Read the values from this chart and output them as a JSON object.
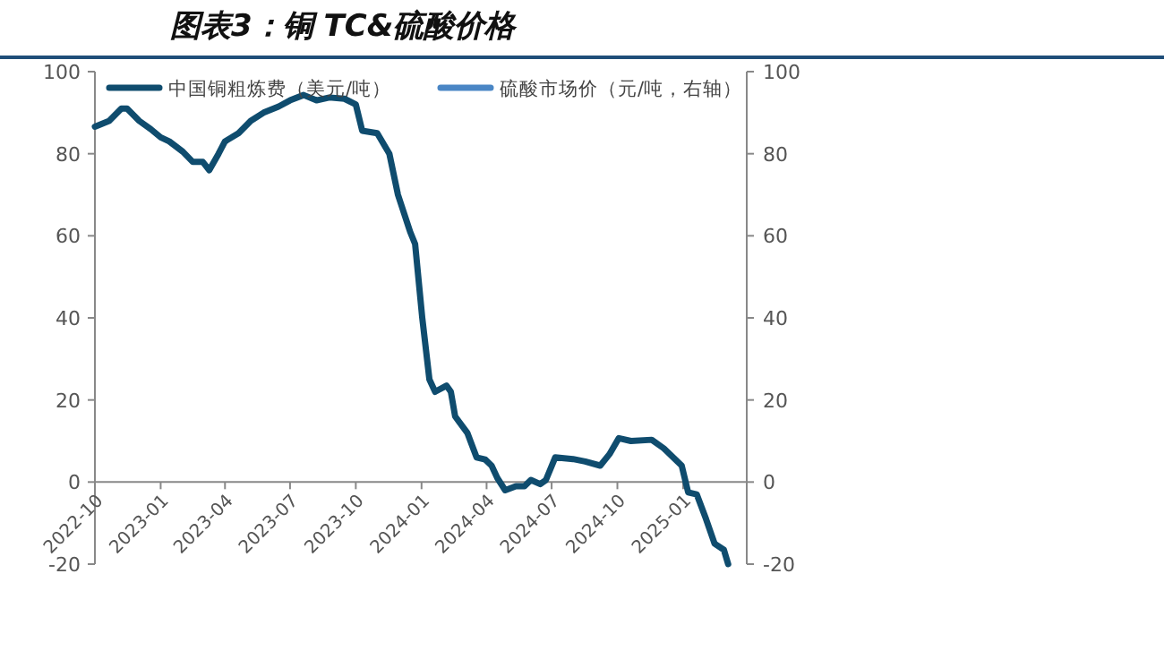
{
  "chart_data": {
    "type": "line",
    "title": "图表3：铜 TC&硫酸价格",
    "legend": "top",
    "xlim": [
      "2022-10-01",
      "2025-03-31"
    ],
    "xticks": [
      {
        "value": "2022-10-01",
        "label": "2022-10"
      },
      {
        "value": "2023-01-01",
        "label": "2023-01"
      },
      {
        "value": "2023-04-01",
        "label": "2023-04"
      },
      {
        "value": "2023-07-01",
        "label": "2023-07"
      },
      {
        "value": "2023-10-01",
        "label": "2023-10"
      },
      {
        "value": "2024-01-01",
        "label": "2024-01"
      },
      {
        "value": "2024-04-01",
        "label": "2024-04"
      },
      {
        "value": "2024-07-01",
        "label": "2024-07"
      },
      {
        "value": "2024-10-01",
        "label": "2024-10"
      },
      {
        "value": "2025-01-01",
        "label": "2025-01"
      }
    ],
    "ylim": [
      -20,
      100
    ],
    "yticks": [
      -20,
      0,
      20,
      40,
      60,
      80,
      100
    ],
    "y2lim": [
      -20,
      100
    ],
    "y2ticks": [
      -20,
      0,
      20,
      40,
      60,
      80,
      100
    ],
    "series": [
      {
        "name": "中国铜粗炼费（美元/吨）",
        "color": "#0f4c6e",
        "x": [
          "2022-10-01",
          "2022-10-21",
          "2022-11-07",
          "2022-11-15",
          "2022-12-02",
          "2022-12-18",
          "2023-01-01",
          "2023-01-13",
          "2023-02-01",
          "2023-02-15",
          "2023-03-01",
          "2023-03-10",
          "2023-03-23",
          "2023-04-01",
          "2023-04-20",
          "2023-05-07",
          "2023-05-25",
          "2023-06-15",
          "2023-07-01",
          "2023-07-20",
          "2023-08-07",
          "2023-08-25",
          "2023-09-15",
          "2023-10-01",
          "2023-10-10",
          "2023-10-31",
          "2023-11-17",
          "2023-11-29",
          "2023-12-16",
          "2023-12-23",
          "2024-01-02",
          "2024-01-12",
          "2024-01-20",
          "2024-02-05",
          "2024-02-11",
          "2024-02-17",
          "2024-03-05",
          "2024-03-18",
          "2024-03-30",
          "2024-04-08",
          "2024-04-16",
          "2024-04-27",
          "2024-05-12",
          "2024-05-24",
          "2024-06-02",
          "2024-06-15",
          "2024-06-23",
          "2024-07-06",
          "2024-07-31",
          "2024-08-17",
          "2024-09-07",
          "2024-09-20",
          "2024-10-03",
          "2024-10-20",
          "2024-11-18",
          "2024-12-05",
          "2024-12-30",
          "2025-01-08",
          "2025-01-20",
          "2025-02-02",
          "2025-02-14",
          "2025-02-27",
          "2025-03-05"
        ],
        "values": [
          86.6,
          88,
          91,
          91,
          88,
          86,
          84,
          83,
          80.5,
          78,
          78,
          76,
          80,
          83,
          85,
          88,
          90,
          91.5,
          93,
          94.3,
          93,
          93.7,
          93.4,
          92,
          85.6,
          85,
          80,
          70,
          61,
          58,
          40,
          25,
          22,
          23.5,
          22,
          16,
          12,
          6,
          5.5,
          4,
          1,
          -2,
          -1,
          -1,
          0.5,
          -0.5,
          0.5,
          6,
          5.6,
          5,
          4,
          6.8,
          10.7,
          10,
          10.3,
          8.2,
          4,
          -2.5,
          -3,
          -9,
          -15,
          -16.5,
          -20
        ]
      },
      {
        "name": "硫酸市场价（元/吨，右轴）",
        "color": "#4a86c5"
      }
    ]
  }
}
